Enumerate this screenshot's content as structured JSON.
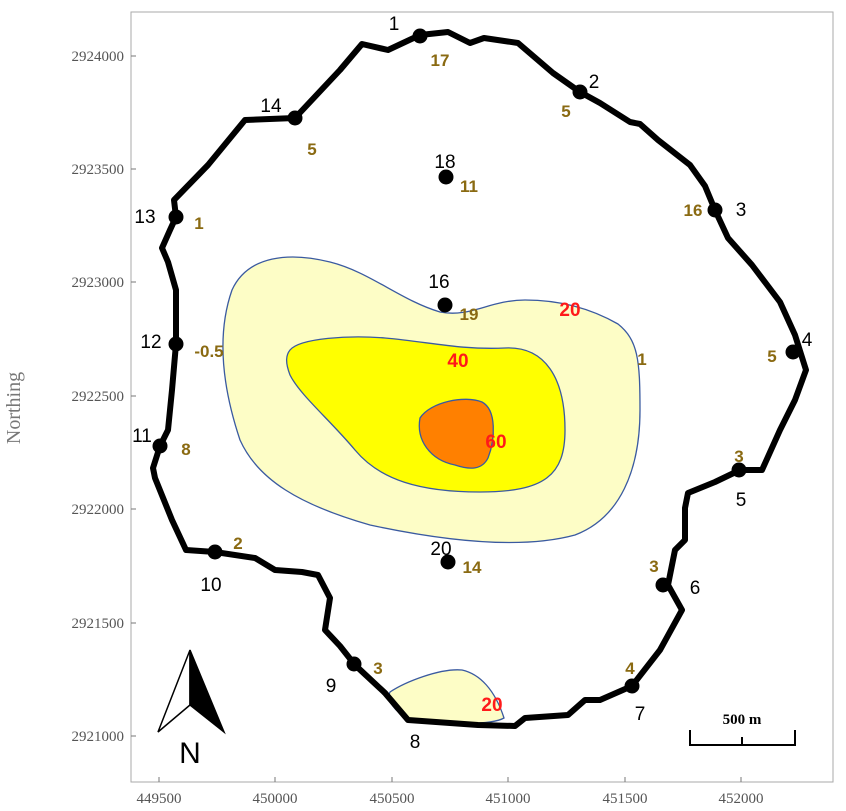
{
  "axes": {
    "y_title": "Northing",
    "x_ticks": [
      "449500",
      "450000",
      "450500",
      "451000",
      "451500",
      "452000"
    ],
    "y_ticks": [
      "2924000",
      "2923500",
      "2923000",
      "2922500",
      "2922000",
      "2921500",
      "2921000"
    ]
  },
  "colors": {
    "boundary": "#000000",
    "contour_20": "#fdfdc6",
    "contour_40": "#ffff00",
    "contour_60": "#ff8000",
    "contour_line": "#3a5aa0",
    "value_label": "#8a6a12",
    "contour_label": "#ff1a1a"
  },
  "points": [
    {
      "id": "1",
      "value": "17"
    },
    {
      "id": "2",
      "value": "5"
    },
    {
      "id": "3",
      "value": "16"
    },
    {
      "id": "4",
      "value": "5"
    },
    {
      "id": "5",
      "value": "3"
    },
    {
      "id": "6",
      "value": "3"
    },
    {
      "id": "7",
      "value": "4"
    },
    {
      "id": "8",
      "value": ""
    },
    {
      "id": "9",
      "value": "3"
    },
    {
      "id": "10",
      "value": "2"
    },
    {
      "id": "11",
      "value": "8"
    },
    {
      "id": "12",
      "value": "-0.5"
    },
    {
      "id": "13",
      "value": "1"
    },
    {
      "id": "14",
      "value": "5"
    },
    {
      "id": "16",
      "value": "19"
    },
    {
      "id": "18",
      "value": "11"
    },
    {
      "id": "20",
      "value": "14"
    }
  ],
  "contour_labels": [
    {
      "name": "contour-label-20-main",
      "text": "20"
    },
    {
      "name": "contour-label-40",
      "text": "40"
    },
    {
      "name": "contour-label-60",
      "text": "60"
    },
    {
      "name": "contour-label-20-south",
      "text": "20"
    },
    {
      "name": "contour-label-edge",
      "text": "1"
    }
  ],
  "scale_bar": {
    "label": "500 m"
  },
  "north_arrow": {
    "label": "N",
    "icon": "north-arrow-icon"
  }
}
